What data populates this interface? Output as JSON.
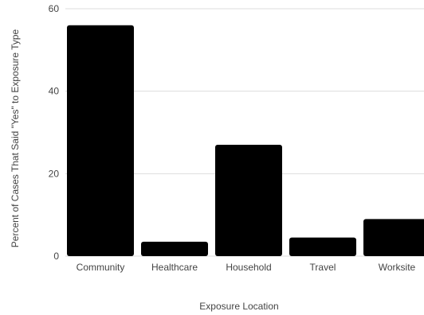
{
  "chart_data": {
    "type": "bar",
    "categories": [
      "Community",
      "Healthcare",
      "Household",
      "Travel",
      "Worksite"
    ],
    "values": [
      56,
      3.5,
      27,
      4.5,
      9
    ],
    "xlabel": "Exposure Location",
    "ylabel": "Percent of Cases That Said \"Yes\" to Exposure Type",
    "ylim": [
      0,
      60
    ],
    "yticks": [
      0,
      20,
      40,
      60
    ],
    "grid": true,
    "bar_color": "#000000"
  }
}
